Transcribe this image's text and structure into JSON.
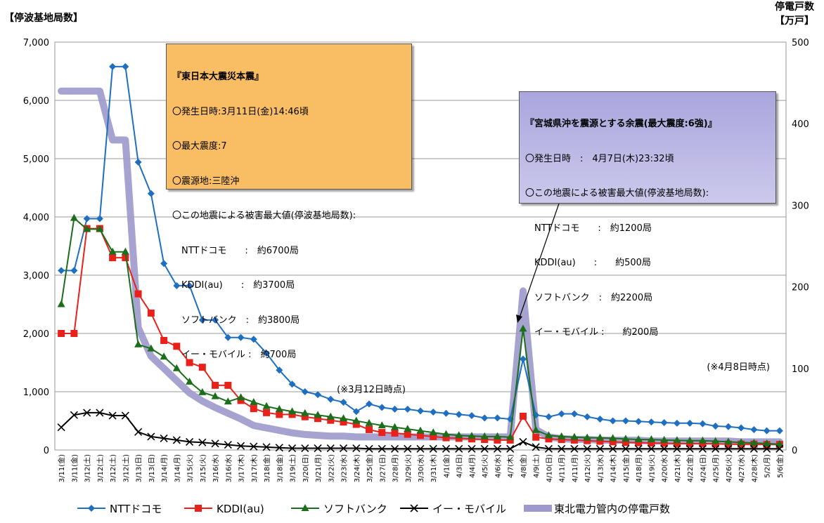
{
  "chart_data": {
    "type": "line",
    "y_left_label": "【停波基地局数】",
    "y_right_label_line1": "停電戸数",
    "y_right_label_line2": "【万戸】",
    "y_left_ticks": [
      "0",
      "1,000",
      "2,000",
      "3,000",
      "4,000",
      "5,000",
      "6,000",
      "7,000"
    ],
    "y_right_ticks": [
      "0",
      "100",
      "200",
      "300",
      "400",
      "500"
    ],
    "ylim_left": [
      0,
      7000
    ],
    "ylim_right": [
      0,
      500
    ],
    "grid": true,
    "legend_position": "bottom",
    "categories": [
      "3/11(金)",
      "3/11(金)",
      "3/12(土)",
      "3/12(土)",
      "3/12(土)",
      "3/12(土)",
      "3/13(日)",
      "3/13(日)",
      "3/14(月)",
      "3/14(月)",
      "3/15(火)",
      "3/15(火)",
      "3/16(水)",
      "3/16(水)",
      "3/17(木)",
      "3/17(木)",
      "3/18(金)",
      "3/18(金)",
      "3/19(土)",
      "3/20(日)",
      "3/21(月)",
      "3/22(火)",
      "3/23(水)",
      "3/24(木)",
      "3/25(金)",
      "3/27(日)",
      "3/28(月)",
      "3/29(火)",
      "3/30(水)",
      "3/31(木)",
      "4/1(金)",
      "4/3(日)",
      "4/4(月)",
      "4/5(火)",
      "4/6(水)",
      "4/7(木)",
      "4/8(金)",
      "4/9(土)",
      "4/10(日)",
      "4/11(月)",
      "4/11(月)",
      "4/12(火)",
      "4/13(水)",
      "4/14(木)",
      "4/15(金)",
      "4/18(月)",
      "4/19(火)",
      "4/20(水)",
      "4/21(木)",
      "4/22(金)",
      "4/24(日)",
      "4/25(月)",
      "4/26(火)",
      "4/27(水)",
      "4/28(木)",
      "5/2(月)",
      "5/6(金)"
    ],
    "series": [
      {
        "name": "NTTドコモ",
        "axis": "left",
        "color": "#1f6fc0",
        "marker": "diamond",
        "values": [
          3080,
          3080,
          3970,
          3970,
          6580,
          6580,
          4940,
          4400,
          3200,
          2820,
          2820,
          2230,
          2230,
          1930,
          1930,
          1900,
          1660,
          1370,
          1130,
          1000,
          950,
          870,
          820,
          660,
          790,
          730,
          700,
          700,
          670,
          650,
          630,
          610,
          590,
          550,
          550,
          530,
          1560,
          600,
          570,
          620,
          620,
          570,
          530,
          500,
          500,
          490,
          480,
          470,
          460,
          460,
          450,
          410,
          400,
          380,
          350,
          330,
          330
        ]
      },
      {
        "name": "KDDI(au)",
        "axis": "left",
        "color": "#e8211a",
        "marker": "square",
        "values": [
          2000,
          2000,
          3800,
          3800,
          3300,
          3300,
          2680,
          2350,
          1880,
          1780,
          1500,
          1420,
          1110,
          1110,
          850,
          710,
          640,
          610,
          610,
          570,
          540,
          510,
          480,
          440,
          350,
          300,
          290,
          270,
          250,
          230,
          210,
          200,
          190,
          180,
          170,
          170,
          580,
          220,
          190,
          180,
          170,
          160,
          150,
          140,
          130,
          125,
          120,
          115,
          110,
          110,
          110,
          105,
          100,
          100,
          100,
          95,
          95
        ]
      },
      {
        "name": "ソフトバンク",
        "axis": "left",
        "color": "#1b6e1b",
        "marker": "triangle",
        "values": [
          2500,
          3980,
          3790,
          3790,
          3400,
          3400,
          1810,
          1740,
          1600,
          1400,
          1170,
          990,
          920,
          830,
          900,
          820,
          750,
          700,
          660,
          630,
          600,
          570,
          540,
          500,
          460,
          420,
          390,
          360,
          330,
          300,
          270,
          250,
          240,
          230,
          230,
          220,
          2080,
          340,
          250,
          230,
          220,
          210,
          210,
          200,
          190,
          180,
          180,
          170,
          165,
          160,
          160,
          150,
          140,
          130,
          120,
          110,
          100
        ]
      },
      {
        "name": "イー・モバイル",
        "axis": "left",
        "color": "#000000",
        "marker": "x",
        "values": [
          390,
          600,
          640,
          640,
          590,
          590,
          310,
          230,
          200,
          170,
          140,
          130,
          110,
          90,
          70,
          60,
          50,
          40,
          30,
          30,
          30,
          30,
          30,
          30,
          20,
          20,
          20,
          20,
          20,
          20,
          20,
          20,
          20,
          20,
          20,
          20,
          140,
          50,
          20,
          20,
          20,
          20,
          20,
          20,
          20,
          20,
          20,
          20,
          20,
          20,
          20,
          20,
          20,
          20,
          20,
          20,
          20
        ]
      },
      {
        "name": "東北電力管内の停電戸数",
        "axis": "right",
        "color": "#9d99cc",
        "marker": "none",
        "values": [
          440,
          440,
          440,
          440,
          380,
          380,
          150,
          115,
          100,
          85,
          70,
          60,
          52,
          45,
          38,
          30,
          27,
          24,
          21,
          19,
          18,
          17,
          17,
          16,
          16,
          16,
          16,
          16,
          16,
          16,
          16,
          16,
          16,
          16,
          16,
          16,
          195,
          25,
          16,
          14,
          13,
          13,
          12,
          12,
          12,
          12,
          11,
          11,
          11,
          11,
          11,
          11,
          11,
          10,
          10,
          10,
          10
        ]
      }
    ]
  },
  "annotations": {
    "main": {
      "title": "『東日本大震災本震』",
      "lines": [
        "〇発生日時:3月11日(金)14:46頃",
        "〇最大震度:7",
        "〇震源地:三陸沖",
        "〇この地震による被害最大値(停波基地局数):",
        "　NTTドコモ　　:　約6700局",
        "　KDDI(au)　　:　約3700局",
        "　ソフトバンク　:　約3800局",
        "　イー・モバイル :　約700局"
      ],
      "note": "(※3月12日時点)"
    },
    "aftershock": {
      "title": "『宮城県沖を震源とする余震(最大震度:6強)』",
      "lines": [
        "〇発生日時　:　4月7日(木)23:32頃",
        "〇この地震による被害最大値(停波基地局数):",
        "　NTTドコモ　　:　約1200局",
        "　KDDI(au)　　:　　約500局",
        "　ソフトバンク　:　約2200局",
        "　イー・モバイル :　　約200局"
      ],
      "note": "(※4月8日時点)"
    }
  }
}
